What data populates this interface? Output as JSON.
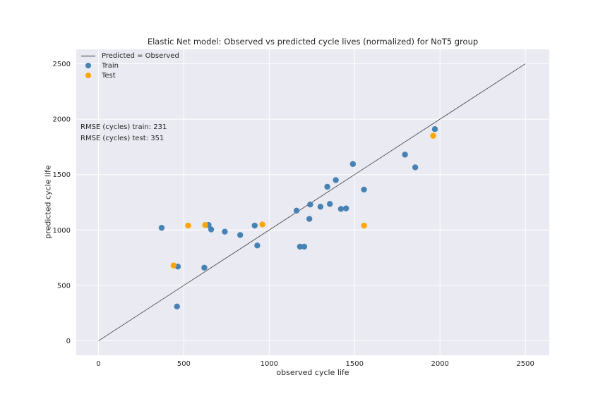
{
  "chart_data": {
    "type": "scatter",
    "title": "Elastic Net model: Observed vs predicted cycle lives (normalized) for NoT5 group",
    "xlabel": "observed cycle life",
    "ylabel": "predicted cycle life",
    "xlim": [
      -130,
      2640
    ],
    "ylim": [
      -130,
      2630
    ],
    "xticks": [
      0,
      500,
      1000,
      1500,
      2000,
      2500
    ],
    "yticks": [
      0,
      500,
      1000,
      1500,
      2000,
      2500
    ],
    "grid": true,
    "legend_position": "top-left",
    "reference_line": {
      "name": "Predicted = Observed",
      "x": [
        0,
        2500
      ],
      "y": [
        0,
        2500
      ],
      "color": "#3b3b3b"
    },
    "series": [
      {
        "name": "Train",
        "color": "#4682b4",
        "points": [
          [
            370,
            1020
          ],
          [
            460,
            310
          ],
          [
            465,
            670
          ],
          [
            620,
            660
          ],
          [
            645,
            1045
          ],
          [
            660,
            1005
          ],
          [
            740,
            985
          ],
          [
            830,
            955
          ],
          [
            915,
            1040
          ],
          [
            930,
            860
          ],
          [
            1160,
            1175
          ],
          [
            1180,
            850
          ],
          [
            1205,
            850
          ],
          [
            1235,
            1100
          ],
          [
            1240,
            1230
          ],
          [
            1300,
            1210
          ],
          [
            1340,
            1390
          ],
          [
            1355,
            1235
          ],
          [
            1390,
            1450
          ],
          [
            1420,
            1190
          ],
          [
            1450,
            1195
          ],
          [
            1490,
            1595
          ],
          [
            1555,
            1365
          ],
          [
            1795,
            1680
          ],
          [
            1855,
            1565
          ],
          [
            1970,
            1910
          ]
        ]
      },
      {
        "name": "Test",
        "color": "#ffa500",
        "points": [
          [
            440,
            680
          ],
          [
            525,
            1040
          ],
          [
            625,
            1045
          ],
          [
            960,
            1050
          ],
          [
            1555,
            1040
          ],
          [
            1960,
            1850
          ]
        ]
      }
    ]
  },
  "annotations": {
    "rmse_train": "RMSE (cycles) train: 231",
    "rmse_test": "RMSE (cycles) test: 351"
  },
  "colors": {
    "plot_background": "#eaeaf2",
    "grid": "#ffffff"
  }
}
